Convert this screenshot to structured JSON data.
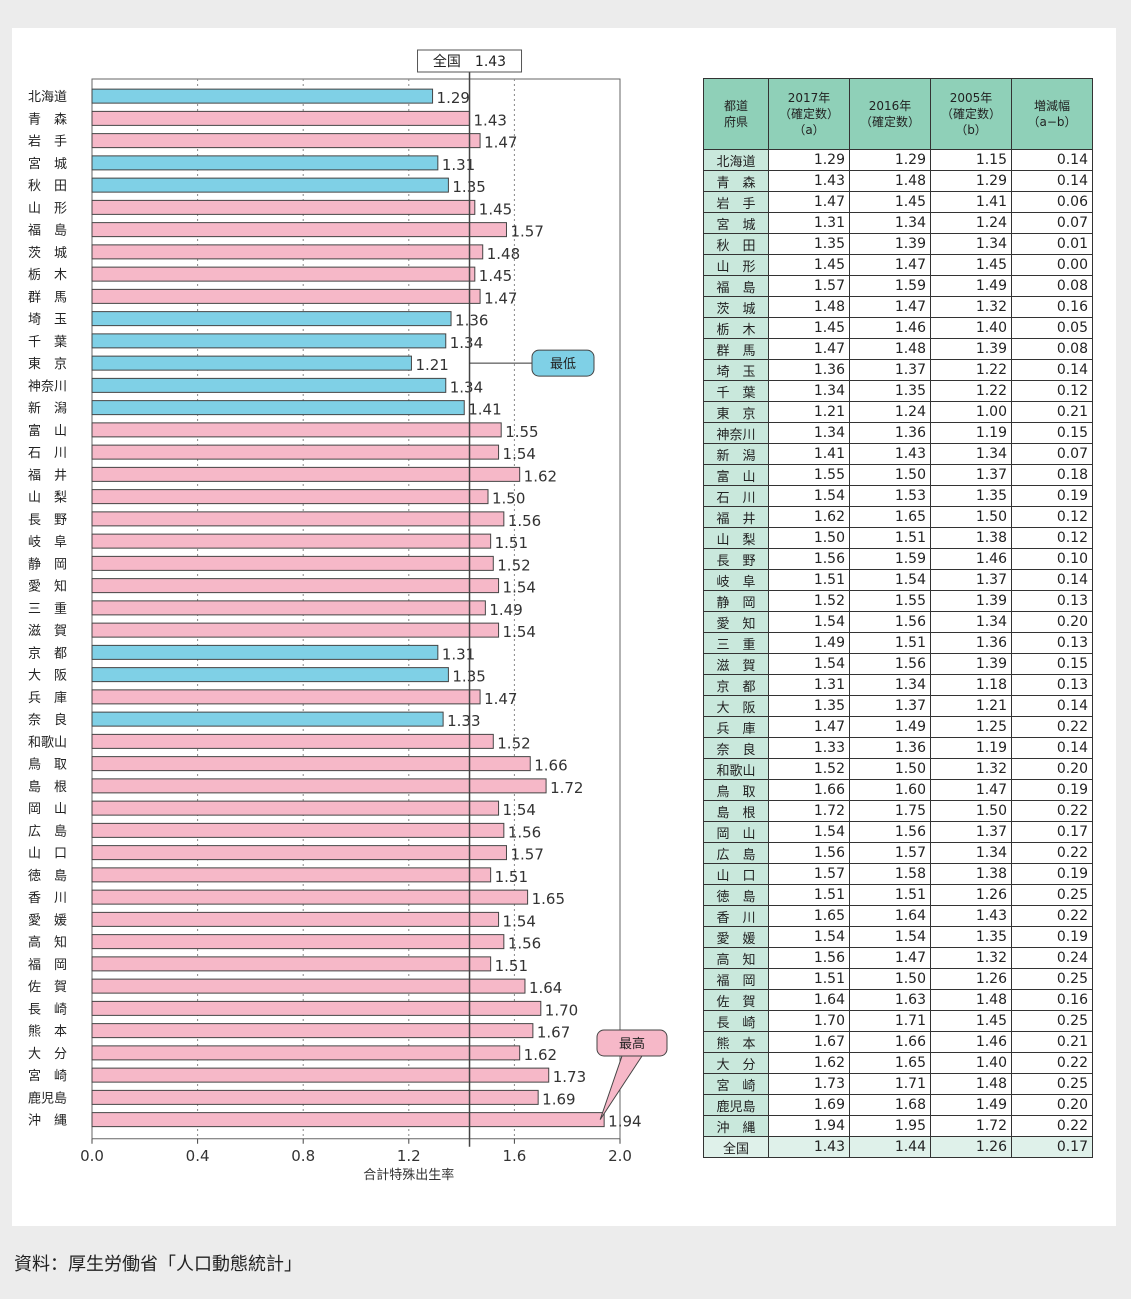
{
  "chart_data": {
    "type": "bar",
    "orientation": "horizontal",
    "categories": [
      "北海道",
      "青　森",
      "岩　手",
      "宮　城",
      "秋　田",
      "山　形",
      "福　島",
      "茨　城",
      "栃　木",
      "群　馬",
      "埼　玉",
      "千　葉",
      "東　京",
      "神奈川",
      "新　潟",
      "富　山",
      "石　川",
      "福　井",
      "山　梨",
      "長　野",
      "岐　阜",
      "静　岡",
      "愛　知",
      "三　重",
      "滋　賀",
      "京　都",
      "大　阪",
      "兵　庫",
      "奈　良",
      "和歌山",
      "鳥　取",
      "島　根",
      "岡　山",
      "広　島",
      "山　口",
      "徳　島",
      "香　川",
      "愛　媛",
      "高　知",
      "福　岡",
      "佐　賀",
      "長　崎",
      "熊　本",
      "大　分",
      "宮　崎",
      "鹿児島",
      "沖　縄"
    ],
    "values": [
      1.29,
      1.43,
      1.47,
      1.31,
      1.35,
      1.45,
      1.57,
      1.48,
      1.45,
      1.47,
      1.36,
      1.34,
      1.21,
      1.34,
      1.41,
      1.55,
      1.54,
      1.62,
      1.5,
      1.56,
      1.51,
      1.52,
      1.54,
      1.49,
      1.54,
      1.31,
      1.35,
      1.47,
      1.33,
      1.52,
      1.66,
      1.72,
      1.54,
      1.56,
      1.57,
      1.51,
      1.65,
      1.54,
      1.56,
      1.51,
      1.64,
      1.7,
      1.67,
      1.62,
      1.73,
      1.69,
      1.94
    ],
    "value_labels": [
      "1.29",
      "1.43",
      "1.47",
      "1.31",
      "1.35",
      "1.45",
      "1.57",
      "1.48",
      "1.45",
      "1.47",
      "1.36",
      "1.34",
      "1.21",
      "1.34",
      "1.41",
      "1.55",
      "1.54",
      "1.62",
      "1.50",
      "1.56",
      "1.51",
      "1.52",
      "1.54",
      "1.49",
      "1.54",
      "1.31",
      "1.35",
      "1.47",
      "1.33",
      "1.52",
      "1.66",
      "1.72",
      "1.54",
      "1.56",
      "1.57",
      "1.51",
      "1.65",
      "1.54",
      "1.56",
      "1.51",
      "1.64",
      "1.70",
      "1.67",
      "1.62",
      "1.73",
      "1.69",
      "1.94"
    ],
    "xlim": [
      0,
      2.0
    ],
    "xticks": [
      "0.0",
      "0.4",
      "0.8",
      "1.2",
      "1.6",
      "2.0"
    ],
    "xtick_values": [
      0,
      0.4,
      0.8,
      1.2,
      1.6,
      2.0
    ],
    "xlabel": "合計特殊出生率",
    "national_value": 1.43,
    "national_label": "全国　1.43",
    "lowest_label": "最低",
    "highest_label": "最高",
    "colors": {
      "below_national": "#7fd0e6",
      "above_national": "#f6b8c8",
      "border": "#444444"
    }
  },
  "table": {
    "headers": [
      "都道\n府県",
      "2017年\n（確定数）\n（a）",
      "2016年\n（確定数）",
      "2005年\n（確定数）\n（b）",
      "増減幅\n（a−b）"
    ],
    "rows": [
      [
        "北海道",
        "1.29",
        "1.29",
        "1.15",
        "0.14"
      ],
      [
        "青　森",
        "1.43",
        "1.48",
        "1.29",
        "0.14"
      ],
      [
        "岩　手",
        "1.47",
        "1.45",
        "1.41",
        "0.06"
      ],
      [
        "宮　城",
        "1.31",
        "1.34",
        "1.24",
        "0.07"
      ],
      [
        "秋　田",
        "1.35",
        "1.39",
        "1.34",
        "0.01"
      ],
      [
        "山　形",
        "1.45",
        "1.47",
        "1.45",
        "0.00"
      ],
      [
        "福　島",
        "1.57",
        "1.59",
        "1.49",
        "0.08"
      ],
      [
        "茨　城",
        "1.48",
        "1.47",
        "1.32",
        "0.16"
      ],
      [
        "栃　木",
        "1.45",
        "1.46",
        "1.40",
        "0.05"
      ],
      [
        "群　馬",
        "1.47",
        "1.48",
        "1.39",
        "0.08"
      ],
      [
        "埼　玉",
        "1.36",
        "1.37",
        "1.22",
        "0.14"
      ],
      [
        "千　葉",
        "1.34",
        "1.35",
        "1.22",
        "0.12"
      ],
      [
        "東　京",
        "1.21",
        "1.24",
        "1.00",
        "0.21"
      ],
      [
        "神奈川",
        "1.34",
        "1.36",
        "1.19",
        "0.15"
      ],
      [
        "新　潟",
        "1.41",
        "1.43",
        "1.34",
        "0.07"
      ],
      [
        "富　山",
        "1.55",
        "1.50",
        "1.37",
        "0.18"
      ],
      [
        "石　川",
        "1.54",
        "1.53",
        "1.35",
        "0.19"
      ],
      [
        "福　井",
        "1.62",
        "1.65",
        "1.50",
        "0.12"
      ],
      [
        "山　梨",
        "1.50",
        "1.51",
        "1.38",
        "0.12"
      ],
      [
        "長　野",
        "1.56",
        "1.59",
        "1.46",
        "0.10"
      ],
      [
        "岐　阜",
        "1.51",
        "1.54",
        "1.37",
        "0.14"
      ],
      [
        "静　岡",
        "1.52",
        "1.55",
        "1.39",
        "0.13"
      ],
      [
        "愛　知",
        "1.54",
        "1.56",
        "1.34",
        "0.20"
      ],
      [
        "三　重",
        "1.49",
        "1.51",
        "1.36",
        "0.13"
      ],
      [
        "滋　賀",
        "1.54",
        "1.56",
        "1.39",
        "0.15"
      ],
      [
        "京　都",
        "1.31",
        "1.34",
        "1.18",
        "0.13"
      ],
      [
        "大　阪",
        "1.35",
        "1.37",
        "1.21",
        "0.14"
      ],
      [
        "兵　庫",
        "1.47",
        "1.49",
        "1.25",
        "0.22"
      ],
      [
        "奈　良",
        "1.33",
        "1.36",
        "1.19",
        "0.14"
      ],
      [
        "和歌山",
        "1.52",
        "1.50",
        "1.32",
        "0.20"
      ],
      [
        "鳥　取",
        "1.66",
        "1.60",
        "1.47",
        "0.19"
      ],
      [
        "島　根",
        "1.72",
        "1.75",
        "1.50",
        "0.22"
      ],
      [
        "岡　山",
        "1.54",
        "1.56",
        "1.37",
        "0.17"
      ],
      [
        "広　島",
        "1.56",
        "1.57",
        "1.34",
        "0.22"
      ],
      [
        "山　口",
        "1.57",
        "1.58",
        "1.38",
        "0.19"
      ],
      [
        "徳　島",
        "1.51",
        "1.51",
        "1.26",
        "0.25"
      ],
      [
        "香　川",
        "1.65",
        "1.64",
        "1.43",
        "0.22"
      ],
      [
        "愛　媛",
        "1.54",
        "1.54",
        "1.35",
        "0.19"
      ],
      [
        "高　知",
        "1.56",
        "1.47",
        "1.32",
        "0.24"
      ],
      [
        "福　岡",
        "1.51",
        "1.50",
        "1.26",
        "0.25"
      ],
      [
        "佐　賀",
        "1.64",
        "1.63",
        "1.48",
        "0.16"
      ],
      [
        "長　崎",
        "1.70",
        "1.71",
        "1.45",
        "0.25"
      ],
      [
        "熊　本",
        "1.67",
        "1.66",
        "1.46",
        "0.21"
      ],
      [
        "大　分",
        "1.62",
        "1.65",
        "1.40",
        "0.22"
      ],
      [
        "宮　崎",
        "1.73",
        "1.71",
        "1.48",
        "0.25"
      ],
      [
        "鹿児島",
        "1.69",
        "1.68",
        "1.49",
        "0.20"
      ],
      [
        "沖　縄",
        "1.94",
        "1.95",
        "1.72",
        "0.22"
      ],
      [
        "全国",
        "1.43",
        "1.44",
        "1.26",
        "0.17"
      ]
    ]
  },
  "source": "資料：厚生労働省「人口動態統計」"
}
